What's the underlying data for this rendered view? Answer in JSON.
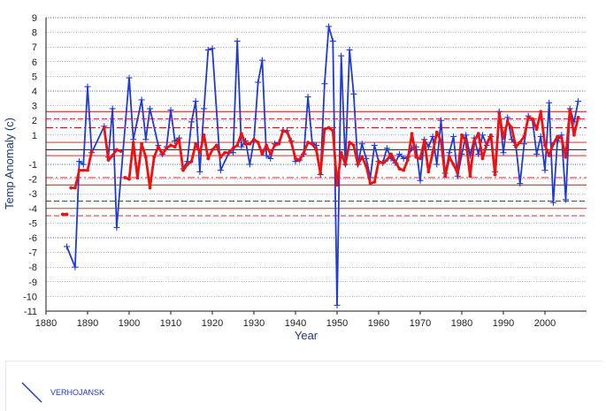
{
  "chart_data": {
    "type": "line",
    "xlabel": "Year",
    "ylabel": "Temp Anomaly (c)",
    "xlim": [
      1880,
      2010
    ],
    "ylim": [
      -11,
      9
    ],
    "xticks": [
      1880,
      1890,
      1900,
      1910,
      1920,
      1930,
      1940,
      1950,
      1960,
      1970,
      1980,
      1990,
      2000
    ],
    "yticks": [
      9,
      8,
      7,
      6,
      5,
      4,
      3,
      2,
      1,
      -1,
      -2,
      -3,
      -4,
      -5,
      -6,
      -7,
      -8,
      -9,
      -10,
      -11
    ],
    "grid": true,
    "reference_lines": [
      {
        "y": 2.6,
        "style": "solid"
      },
      {
        "y": 2.1,
        "style": "dashed"
      },
      {
        "y": 1.5,
        "style": "dashdot"
      },
      {
        "y": 0.5,
        "style": "solid"
      },
      {
        "y": -0.4,
        "style": "solid"
      },
      {
        "y": -1.9,
        "style": "dashdot"
      },
      {
        "y": -2.4,
        "style": "solid"
      },
      {
        "y": -3.5,
        "style": "dashed"
      },
      {
        "y": -4.0,
        "style": "solid"
      },
      {
        "y": -4.5,
        "style": "dashed"
      }
    ],
    "series": [
      {
        "name": "VERHOJANSK",
        "color": "#1f3bd4",
        "points": [
          [
            1885,
            -6.6
          ],
          [
            1887,
            -8.0
          ],
          [
            1888,
            -0.8
          ],
          [
            1889,
            -1.0
          ],
          [
            1890,
            4.3
          ],
          [
            1891,
            -0.2
          ],
          [
            1894,
            1.6
          ],
          [
            1895,
            -0.5
          ],
          [
            1896,
            2.8
          ],
          [
            1897,
            -5.3
          ],
          [
            1900,
            4.9
          ],
          [
            1901,
            0.7
          ],
          [
            1903,
            3.4
          ],
          [
            1904,
            0.7
          ],
          [
            1905,
            2.8
          ],
          [
            1907,
            0.3
          ],
          [
            1908,
            -0.3
          ],
          [
            1909,
            0.2
          ],
          [
            1910,
            2.7
          ],
          [
            1911,
            0.6
          ],
          [
            1912,
            0.8
          ],
          [
            1913,
            -1.3
          ],
          [
            1914,
            -0.8
          ],
          [
            1915,
            1.9
          ],
          [
            1916,
            3.3
          ],
          [
            1917,
            -1.5
          ],
          [
            1918,
            2.8
          ],
          [
            1919,
            6.8
          ],
          [
            1920,
            6.9
          ],
          [
            1922,
            -1.4
          ],
          [
            1924,
            -0.2
          ],
          [
            1925,
            -0.2
          ],
          [
            1926,
            7.4
          ],
          [
            1927,
            0.2
          ],
          [
            1928,
            0.6
          ],
          [
            1929,
            -1.0
          ],
          [
            1930,
            0.6
          ],
          [
            1931,
            4.6
          ],
          [
            1932,
            6.1
          ],
          [
            1933,
            -0.4
          ],
          [
            1934,
            -0.6
          ],
          [
            1935,
            0.4
          ],
          [
            1936,
            0.5
          ],
          [
            1937,
            1.3
          ],
          [
            1938,
            1.3
          ],
          [
            1939,
            0.6
          ],
          [
            1940,
            -0.8
          ],
          [
            1941,
            -0.7
          ],
          [
            1942,
            -0.3
          ],
          [
            1943,
            3.6
          ],
          [
            1944,
            0.5
          ],
          [
            1945,
            0.3
          ],
          [
            1946,
            -1.7
          ],
          [
            1947,
            4.5
          ],
          [
            1948,
            8.4
          ],
          [
            1949,
            7.4
          ],
          [
            1950,
            -10.6
          ],
          [
            1951,
            6.4
          ],
          [
            1952,
            -1.0
          ],
          [
            1953,
            6.8
          ],
          [
            1954,
            3.8
          ],
          [
            1955,
            -1.0
          ],
          [
            1956,
            0.4
          ],
          [
            1957,
            -0.6
          ],
          [
            1958,
            -1.9
          ],
          [
            1959,
            0.3
          ],
          [
            1960,
            -0.8
          ],
          [
            1961,
            -0.9
          ],
          [
            1962,
            0.1
          ],
          [
            1963,
            -0.6
          ],
          [
            1964,
            -0.9
          ],
          [
            1965,
            -0.3
          ],
          [
            1966,
            -0.6
          ],
          [
            1967,
            -0.5
          ],
          [
            1968,
            0.1
          ],
          [
            1969,
            0.2
          ],
          [
            1970,
            -2.1
          ],
          [
            1971,
            0.7
          ],
          [
            1972,
            0.2
          ],
          [
            1973,
            0.9
          ],
          [
            1974,
            -1.0
          ],
          [
            1975,
            2.0
          ],
          [
            1976,
            -1.6
          ],
          [
            1977,
            -0.2
          ],
          [
            1978,
            0.9
          ],
          [
            1979,
            -1.8
          ],
          [
            1980,
            -0.3
          ],
          [
            1981,
            1.0
          ],
          [
            1982,
            -0.4
          ],
          [
            1983,
            0.8
          ],
          [
            1984,
            -0.3
          ],
          [
            1985,
            1.0
          ],
          [
            1986,
            0.3
          ],
          [
            1987,
            0.9
          ],
          [
            1988,
            -1.5
          ],
          [
            1989,
            2.6
          ],
          [
            1990,
            -0.2
          ],
          [
            1991,
            2.2
          ],
          [
            1992,
            0.7
          ],
          [
            1993,
            0.3
          ],
          [
            1994,
            -2.3
          ],
          [
            1995,
            0.4
          ],
          [
            1996,
            2.3
          ],
          [
            1997,
            2.0
          ],
          [
            1998,
            -0.3
          ],
          [
            1999,
            0.9
          ],
          [
            2000,
            -1.4
          ],
          [
            2001,
            3.2
          ],
          [
            2002,
            -3.6
          ],
          [
            2003,
            0.6
          ],
          [
            2004,
            1.0
          ],
          [
            2005,
            -3.4
          ],
          [
            2006,
            2.8
          ],
          [
            2007,
            1.9
          ],
          [
            2008,
            3.3
          ]
        ]
      },
      {
        "name": "",
        "color": "#ee1111",
        "segments": [
          [
            [
              1884,
              -4.4
            ],
            [
              1885,
              -4.4
            ]
          ],
          [
            [
              1886,
              -2.6
            ],
            [
              1887,
              -2.6
            ],
            [
              1888,
              -1.4
            ],
            [
              1889,
              -1.4
            ],
            [
              1890,
              -1.4
            ],
            [
              1891,
              -0.1
            ]
          ],
          [
            [
              1894,
              1.5
            ],
            [
              1895,
              -0.7
            ],
            [
              1896,
              -0.4
            ],
            [
              1897,
              0.0
            ],
            [
              1898,
              -0.1
            ]
          ],
          [
            [
              1899,
              -1.9
            ],
            [
              1900,
              -2.0
            ],
            [
              1901,
              0.5
            ],
            [
              1902,
              -1.9
            ],
            [
              1903,
              0.4
            ],
            [
              1904,
              -0.5
            ],
            [
              1905,
              -2.6
            ],
            [
              1906,
              -0.5
            ],
            [
              1907,
              0.2
            ],
            [
              1908,
              -0.3
            ],
            [
              1909,
              0.1
            ],
            [
              1910,
              0.3
            ],
            [
              1911,
              0.2
            ],
            [
              1912,
              0.7
            ],
            [
              1913,
              -1.4
            ],
            [
              1914,
              -1.0
            ],
            [
              1915,
              -0.8
            ],
            [
              1916,
              0.4
            ],
            [
              1917,
              -0.2
            ],
            [
              1918,
              1.0
            ],
            [
              1919,
              -0.6
            ],
            [
              1920,
              0.0
            ],
            [
              1921,
              0.3
            ],
            [
              1922,
              -0.5
            ],
            [
              1923,
              -0.2
            ],
            [
              1924,
              -0.2
            ],
            [
              1925,
              0.1
            ],
            [
              1926,
              0.3
            ],
            [
              1927,
              1.1
            ],
            [
              1928,
              0.4
            ],
            [
              1929,
              0.4
            ],
            [
              1930,
              0.7
            ],
            [
              1931,
              0.5
            ],
            [
              1932,
              -0.3
            ],
            [
              1933,
              0.3
            ],
            [
              1934,
              -0.3
            ],
            [
              1935,
              0.3
            ],
            [
              1936,
              0.4
            ],
            [
              1937,
              1.3
            ],
            [
              1938,
              1.2
            ],
            [
              1939,
              0.5
            ],
            [
              1940,
              -0.6
            ],
            [
              1941,
              -0.7
            ],
            [
              1942,
              -0.2
            ],
            [
              1943,
              0.5
            ],
            [
              1944,
              0.4
            ],
            [
              1945,
              0.0
            ],
            [
              1946,
              -1.6
            ],
            [
              1947,
              1.4
            ],
            [
              1948,
              1.5
            ],
            [
              1949,
              1.3
            ],
            [
              1950,
              -2.4
            ],
            [
              1951,
              -0.2
            ],
            [
              1952,
              -1.0
            ],
            [
              1953,
              0.5
            ],
            [
              1954,
              0.3
            ],
            [
              1955,
              -1.0
            ],
            [
              1956,
              -0.5
            ],
            [
              1957,
              -1.1
            ],
            [
              1958,
              -2.3
            ],
            [
              1959,
              -2.2
            ],
            [
              1960,
              -0.8
            ],
            [
              1961,
              -0.9
            ],
            [
              1962,
              -0.7
            ],
            [
              1963,
              -0.3
            ],
            [
              1964,
              -0.8
            ],
            [
              1965,
              -1.3
            ],
            [
              1966,
              -1.4
            ],
            [
              1967,
              -0.7
            ],
            [
              1968,
              1.1
            ],
            [
              1969,
              -0.5
            ],
            [
              1970,
              -0.6
            ],
            [
              1971,
              0.6
            ],
            [
              1972,
              -1.5
            ],
            [
              1973,
              -0.2
            ],
            [
              1974,
              1.2
            ],
            [
              1975,
              0.6
            ],
            [
              1976,
              -1.8
            ],
            [
              1977,
              -0.5
            ],
            [
              1978,
              -1.0
            ],
            [
              1979,
              -1.6
            ],
            [
              1980,
              1.0
            ],
            [
              1981,
              0.6
            ],
            [
              1982,
              -1.8
            ],
            [
              1983,
              0.6
            ],
            [
              1984,
              1.1
            ],
            [
              1985,
              -0.6
            ],
            [
              1986,
              0.4
            ],
            [
              1987,
              1.0
            ],
            [
              1988,
              -1.7
            ],
            [
              1989,
              2.5
            ],
            [
              1990,
              0.8
            ],
            [
              1991,
              1.9
            ],
            [
              1992,
              1.5
            ],
            [
              1993,
              0.2
            ],
            [
              1994,
              0.5
            ],
            [
              1995,
              0.9
            ],
            [
              1996,
              2.2
            ],
            [
              1997,
              2.1
            ],
            [
              1998,
              1.4
            ],
            [
              1999,
              2.6
            ],
            [
              2000,
              0.3
            ],
            [
              2001,
              -0.4
            ],
            [
              2002,
              0.4
            ],
            [
              2003,
              0.9
            ],
            [
              2004,
              0.8
            ],
            [
              2005,
              -0.5
            ],
            [
              2006,
              2.7
            ],
            [
              2007,
              1.0
            ],
            [
              2008,
              2.2
            ]
          ]
        ]
      }
    ]
  },
  "legend": {
    "label": "VERHOJANSK",
    "color": "#1f3bd4"
  }
}
